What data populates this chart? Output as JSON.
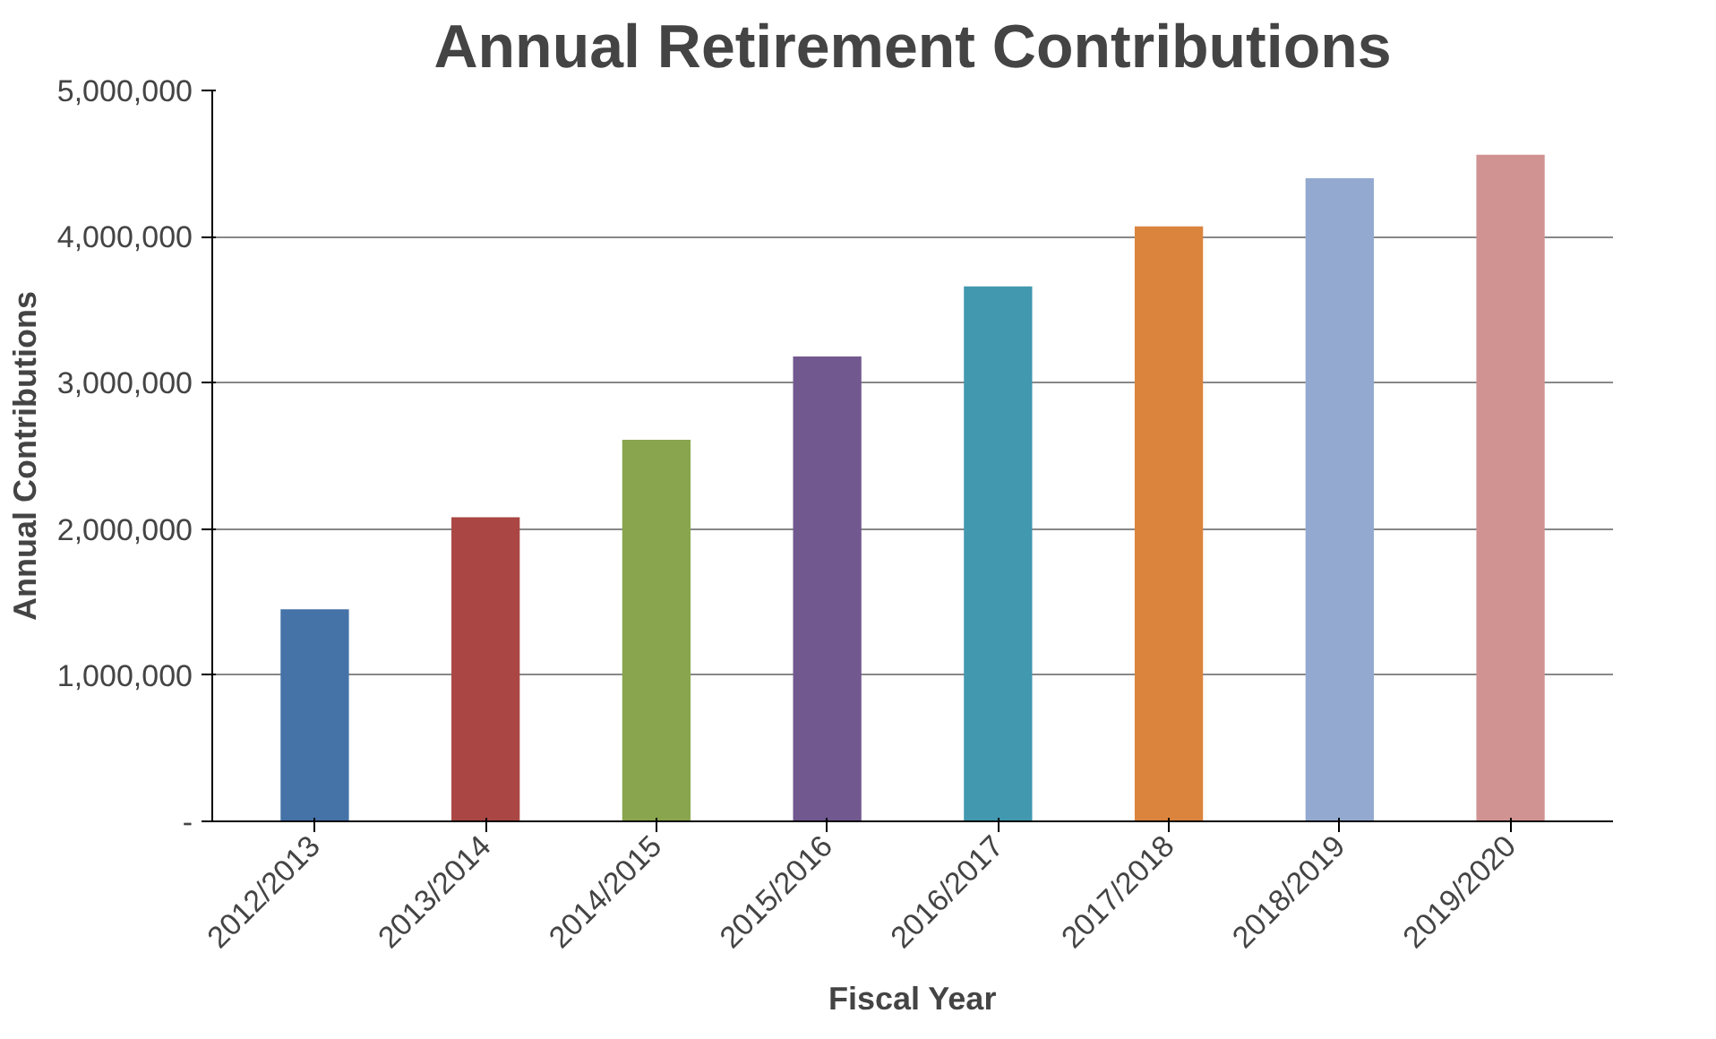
{
  "chart_data": {
    "type": "bar",
    "title": "Annual Retirement Contributions",
    "xlabel": "Fiscal Year",
    "ylabel": "Annual Contributions",
    "categories": [
      "2012/2013",
      "2013/2014",
      "2014/2015",
      "2015/2016",
      "2016/2017",
      "2017/2018",
      "2018/2019",
      "2019/2020"
    ],
    "values": [
      1450000,
      2080000,
      2610000,
      3180000,
      3660000,
      4070000,
      4400000,
      4560000
    ],
    "colors": [
      "#4572a7",
      "#aa4643",
      "#89a54e",
      "#71588f",
      "#4198af",
      "#db843d",
      "#93a9cf",
      "#d19392"
    ],
    "ylim": [
      0,
      5000000
    ],
    "yticks": [
      {
        "value": 0,
        "label": "-"
      },
      {
        "value": 1000000,
        "label": "1,000,000"
      },
      {
        "value": 2000000,
        "label": "2,000,000"
      },
      {
        "value": 3000000,
        "label": "3,000,000"
      },
      {
        "value": 4000000,
        "label": "4,000,000"
      },
      {
        "value": 5000000,
        "label": "5,000,000"
      }
    ],
    "grid": "y"
  }
}
